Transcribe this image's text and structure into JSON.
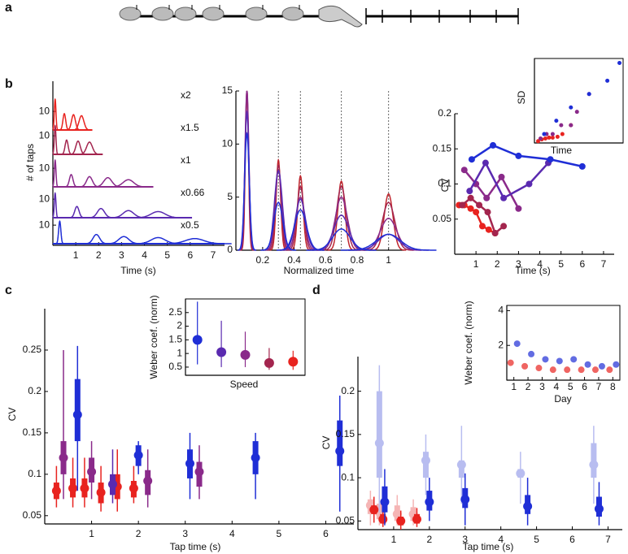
{
  "panel_labels": [
    "a",
    "b",
    "c",
    "d"
  ],
  "chart_data": [
    {
      "type": "ridge",
      "x_label": "Time (s)",
      "y_label": "# of taps",
      "xlim": [
        0,
        7.5
      ],
      "xticks": [
        1,
        2,
        3,
        4,
        5,
        6,
        7
      ],
      "ylim": [
        0,
        35
      ],
      "yticks": [
        10
      ],
      "series": [
        {
          "name": "x2",
          "color": "#e8231f",
          "x": [
            0.1,
            0.5,
            0.9,
            1.25
          ],
          "values": [
            30,
            16,
            15,
            14
          ]
        },
        {
          "name": "x1.5",
          "color": "#a3254e",
          "x": [
            0.1,
            0.6,
            1.1,
            1.6
          ],
          "values": [
            28,
            14,
            13,
            12
          ]
        },
        {
          "name": "x1",
          "color": "#8a2a8a",
          "x": [
            0.1,
            0.8,
            1.6,
            2.4,
            3.3
          ],
          "values": [
            26,
            12,
            10,
            9,
            7
          ]
        },
        {
          "name": "x0.66",
          "color": "#5a2ab0",
          "x": [
            0.1,
            1.05,
            2.1,
            3.3,
            4.6
          ],
          "values": [
            24,
            11,
            9,
            7,
            6
          ]
        },
        {
          "name": "x0.5",
          "color": "#1f2ed6",
          "x": [
            0.3,
            1.9,
            3.1,
            4.6,
            6.2
          ],
          "values": [
            22,
            9,
            7,
            6,
            5
          ]
        }
      ]
    },
    {
      "type": "peaks",
      "x_label": "Normalized time",
      "xlim": [
        0.03,
        1.1
      ],
      "xticks": [
        0.2,
        0.4,
        0.6,
        0.8,
        1
      ],
      "ylim": [
        0,
        15
      ],
      "yticks": [
        0,
        5,
        10,
        15
      ],
      "vlines": [
        0.3,
        0.44,
        0.7,
        1
      ],
      "x": [
        0.1,
        0.3,
        0.44,
        0.7,
        1
      ],
      "series": [
        {
          "color": "#c0262e",
          "values": [
            15,
            8.5,
            7,
            6.5,
            5.3
          ]
        },
        {
          "color": "#a3254e",
          "values": [
            15,
            8,
            6,
            6,
            4.5
          ]
        },
        {
          "color": "#8a2a8a",
          "values": [
            15,
            7.5,
            5,
            5,
            3
          ]
        },
        {
          "color": "#5a2ab0",
          "values": [
            13,
            7.5,
            4.8,
            3.3,
            1.5
          ]
        },
        {
          "color": "#1f2ed6",
          "values": [
            11,
            4.5,
            3.8,
            2,
            1.5
          ]
        }
      ]
    },
    {
      "type": "line",
      "x_label": "Time (s)",
      "y_label": "CV",
      "xlim": [
        0,
        7.5
      ],
      "xticks": [
        1,
        2,
        3,
        4,
        5,
        6,
        7
      ],
      "ylim": [
        0,
        0.2
      ],
      "yticks": [
        0.05,
        0.1,
        0.15,
        0.2
      ],
      "series": [
        {
          "color": "#e8231f",
          "x": [
            0.2,
            0.45,
            0.75,
            1,
            1.3,
            1.6,
            1.9
          ],
          "values": [
            0.07,
            0.07,
            0.065,
            0.06,
            0.04,
            0.035,
            0.03
          ]
        },
        {
          "color": "#a3254e",
          "x": [
            0.35,
            0.75,
            1.15,
            1.55,
            1.9,
            2.3
          ],
          "values": [
            0.07,
            0.08,
            0.07,
            0.06,
            0.03,
            0.04
          ]
        },
        {
          "color": "#8a2a8a",
          "x": [
            0.45,
            1,
            1.5,
            2.2,
            3
          ],
          "values": [
            0.12,
            0.1,
            0.08,
            0.11,
            0.065
          ]
        },
        {
          "color": "#5a2ab0",
          "x": [
            0.7,
            1.45,
            2.3,
            3.5,
            4.4
          ],
          "values": [
            0.09,
            0.13,
            0.08,
            0.1,
            0.13
          ]
        },
        {
          "color": "#1f2ed6",
          "x": [
            0.8,
            1.8,
            3,
            4.5,
            6
          ],
          "values": [
            0.135,
            0.155,
            0.14,
            0.135,
            0.125
          ]
        }
      ]
    },
    {
      "type": "scatter",
      "x_label": "Time",
      "y_label": "SD",
      "xlim": [
        0,
        7.3
      ],
      "ylim": [
        0,
        0.95
      ],
      "series": [
        {
          "color": "#e8231f",
          "x": [
            0.3,
            0.6,
            0.9,
            1.2,
            1.5,
            1.9,
            2.3,
            3
          ],
          "values": [
            0.02,
            0.04,
            0.05,
            0.06,
            0.06,
            0.07,
            0.1,
            0.2
          ]
        },
        {
          "color": "#8a2a8a",
          "x": [
            0.5,
            1,
            1.5,
            2.2,
            3,
            3.5,
            4.5
          ],
          "values": [
            0.05,
            0.1,
            0.1,
            0.2,
            0.2,
            0.35,
            0.55
          ]
        },
        {
          "color": "#1f2ed6",
          "x": [
            0.8,
            1.8,
            3,
            4.5,
            6,
            7
          ],
          "values": [
            0.1,
            0.25,
            0.4,
            0.55,
            0.7,
            0.9
          ]
        }
      ]
    },
    {
      "type": "box",
      "x_label": "Tap time (s)",
      "y_label": "CV",
      "xlim": [
        0,
        6.6
      ],
      "xticks": [
        1,
        2,
        3,
        4,
        5,
        6
      ],
      "ylim": [
        0.04,
        0.3
      ],
      "yticks": [
        0.05,
        0.1,
        0.15,
        0.2,
        0.25
      ],
      "series": [
        {
          "color": "#e8231f",
          "x": [
            0.25,
            0.6,
            0.85,
            1.2,
            1.55,
            1.9
          ],
          "values": [
            0.08,
            0.083,
            0.083,
            0.078,
            0.085,
            0.083
          ],
          "q1": [
            0.07,
            0.072,
            0.072,
            0.065,
            0.07,
            0.072
          ],
          "q3": [
            0.09,
            0.095,
            0.095,
            0.09,
            0.1,
            0.092
          ],
          "lo": [
            0.06,
            0.06,
            0.06,
            0.055,
            0.055,
            0.065
          ],
          "hi": [
            0.11,
            0.12,
            0.12,
            0.11,
            0.13,
            0.11
          ]
        },
        {
          "color": "#8a2a8a",
          "x": [
            0.4,
            1,
            2.2,
            3.3
          ],
          "values": [
            0.12,
            0.103,
            0.092,
            0.103
          ],
          "q1": [
            0.1,
            0.09,
            0.075,
            0.085
          ],
          "q3": [
            0.14,
            0.12,
            0.105,
            0.115
          ],
          "lo": [
            0.07,
            0.07,
            0.06,
            0.07
          ],
          "hi": [
            0.25,
            0.14,
            0.13,
            0.135
          ]
        },
        {
          "color": "#5a2ab0",
          "x": [
            1.45
          ],
          "values": [
            0.088
          ],
          "q1": [
            0.075
          ],
          "q3": [
            0.1
          ],
          "lo": [
            0.065
          ],
          "hi": [
            0.13
          ]
        },
        {
          "color": "#1f2ed6",
          "x": [
            0.7,
            2,
            3.1,
            4.5,
            6.3
          ],
          "values": [
            0.172,
            0.123,
            0.113,
            0.12,
            0.128
          ],
          "q1": [
            0.14,
            0.11,
            0.095,
            0.1,
            0.11
          ],
          "q3": [
            0.215,
            0.135,
            0.13,
            0.14,
            0.165
          ],
          "lo": [
            0.08,
            0.1,
            0.07,
            0.07,
            0.055
          ],
          "hi": [
            0.255,
            0.14,
            0.15,
            0.15,
            0.195
          ]
        }
      ]
    },
    {
      "type": "dot",
      "x_label": "Speed",
      "y_label": "Weber coef. (norm)",
      "categories": [
        null,
        null,
        null,
        null,
        null
      ],
      "ylim": [
        0.2,
        3
      ],
      "yticks": [
        0.5,
        1,
        1.5,
        2,
        2.5
      ],
      "values": [
        1.5,
        1.05,
        0.95,
        0.65,
        0.7
      ],
      "lo": [
        0.6,
        0.5,
        0.5,
        0.4,
        0.4
      ],
      "hi": [
        2.9,
        2.2,
        1.8,
        1.2,
        1.1
      ],
      "colors": [
        "#1f2ed6",
        "#5a2ab0",
        "#8a2a8a",
        "#a3254e",
        "#e8231f"
      ]
    },
    {
      "type": "box",
      "x_label": "Tap time (s)",
      "y_label": "CV",
      "xlim": [
        0,
        7.4
      ],
      "xticks": [
        1,
        2,
        3,
        4,
        5,
        6,
        7
      ],
      "ylim": [
        0.04,
        0.24
      ],
      "yticks": [
        0.05,
        0.1,
        0.15,
        0.2
      ],
      "series": [
        {
          "color": "#f5b5b5",
          "x": [
            0.35,
            0.6,
            1.1,
            1.55
          ],
          "values": [
            0.068,
            0.06,
            0.058,
            0.058
          ],
          "q1": [
            0.058,
            0.052,
            0.05,
            0.05
          ],
          "q3": [
            0.075,
            0.07,
            0.068,
            0.066
          ],
          "lo": [
            0.045,
            0.045,
            0.045,
            0.045
          ],
          "hi": [
            0.085,
            0.08,
            0.08,
            0.075
          ]
        },
        {
          "color": "#b8bdf0",
          "x": [
            0.6,
            1.9,
            2.9,
            4.55,
            6.6
          ],
          "values": [
            0.14,
            0.12,
            0.115,
            0.105,
            0.115
          ],
          "q1": [
            0.1,
            0.1,
            0.1,
            0.1,
            0.1
          ],
          "q3": [
            0.2,
            0.13,
            0.12,
            0.11,
            0.14
          ],
          "lo": [
            0.06,
            0.08,
            0.07,
            0.07,
            0.07
          ],
          "hi": [
            0.23,
            0.15,
            0.16,
            0.13,
            0.16
          ]
        },
        {
          "color": "#e8231f",
          "x": [
            0.45,
            0.7,
            1.2,
            1.65
          ],
          "values": [
            0.063,
            0.052,
            0.05,
            0.052
          ],
          "q1": [
            0.058,
            0.047,
            0.045,
            0.047
          ],
          "q3": [
            0.068,
            0.058,
            0.055,
            0.058
          ],
          "lo": [
            0.048,
            0.043,
            0.04,
            0.043
          ],
          "hi": [
            0.078,
            0.07,
            0.062,
            0.065
          ]
        },
        {
          "color": "#1f2ed6",
          "x": [
            0.75,
            2,
            3,
            4.75,
            6.75
          ],
          "values": [
            0.072,
            0.072,
            0.075,
            0.067,
            0.064
          ],
          "q1": [
            0.06,
            0.062,
            0.065,
            0.058,
            0.055
          ],
          "q3": [
            0.09,
            0.085,
            0.088,
            0.08,
            0.078
          ],
          "lo": [
            0.045,
            0.05,
            0.045,
            0.045,
            0.045
          ],
          "hi": [
            0.11,
            0.1,
            0.105,
            0.1,
            0.095
          ]
        }
      ]
    },
    {
      "type": "dotline",
      "x_label": "Day",
      "y_label": "Weber coef. (norm)",
      "xlim": [
        0.5,
        8.5
      ],
      "xticks": [
        1,
        2,
        3,
        4,
        5,
        6,
        7,
        8
      ],
      "ylim": [
        0,
        4.3
      ],
      "yticks": [
        2,
        4
      ],
      "x": [
        1,
        2,
        3,
        4,
        5,
        6,
        7,
        8
      ],
      "series": [
        {
          "color": "#e8231f",
          "values": [
            1,
            0.8,
            0.7,
            0.6,
            0.6,
            0.6,
            0.6,
            0.6
          ]
        },
        {
          "color": "#1f2ed6",
          "values": [
            2.1,
            1.5,
            1.2,
            1.1,
            1.2,
            0.9,
            0.8,
            0.9
          ]
        }
      ]
    }
  ]
}
